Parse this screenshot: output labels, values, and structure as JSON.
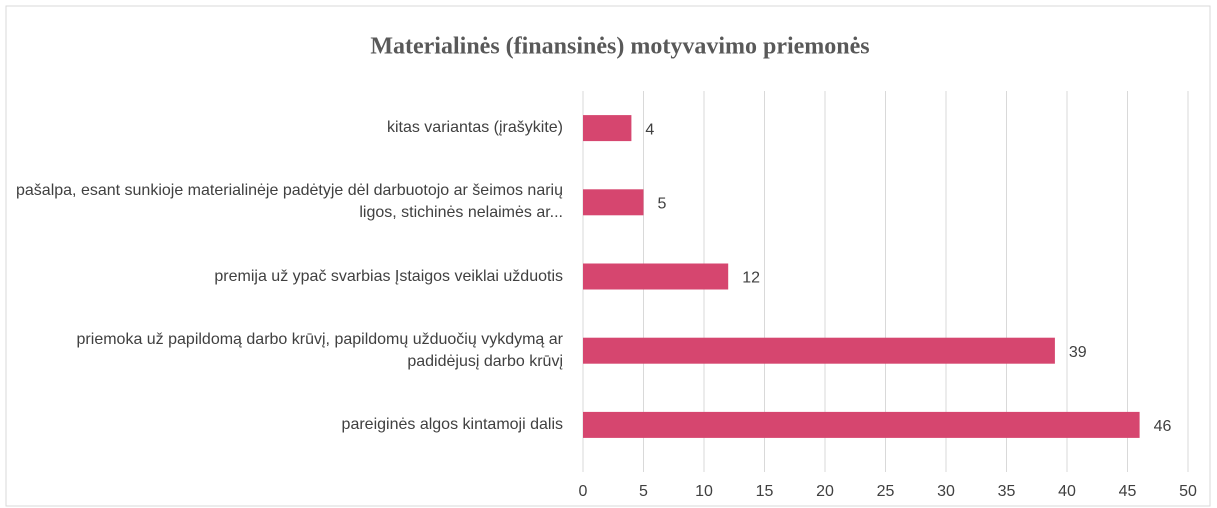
{
  "chart_data": {
    "type": "bar",
    "orientation": "horizontal",
    "title": "Materialinės (finansinės) motyvavimo priemonės",
    "categories": [
      "kitas variantas (įrašykite)",
      "pašalpa, esant sunkioje materialinėje padėtyje dėl darbuotojo ar šeimos narių ligos, stichinės nelaimės ar...",
      "premija už ypač svarbias Įstaigos veiklai užduotis",
      "priemoka už papildomą darbo krūvį, papildomų užduočių vykdymą ar padidėjusį darbo krūvį",
      "pareiginės algos kintamoji dalis"
    ],
    "values": [
      4,
      5,
      12,
      39,
      46
    ],
    "color": "#d6466f",
    "xlim": [
      0,
      50
    ],
    "xticks": [
      0,
      5,
      10,
      15,
      20,
      25,
      30,
      35,
      40,
      45,
      50
    ],
    "grid": true
  }
}
